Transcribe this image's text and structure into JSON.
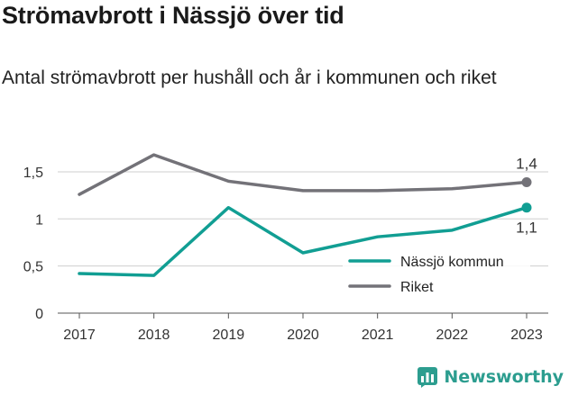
{
  "header": {
    "title": "Strömavbrott i Nässjö över tid",
    "subtitle": "Antal strömavbrott per hushåll och år i kommunen och riket"
  },
  "brand": {
    "name": "Newsworthy"
  },
  "colors": {
    "nassjo": "#119e93",
    "riket": "#737278",
    "axis": "#555555",
    "grid": "#cfcfcf",
    "brand": "#2c9d8f"
  },
  "chart_data": {
    "type": "line",
    "title": "Strömavbrott i Nässjö över tid",
    "subtitle": "Antal strömavbrott per hushåll och år i kommunen och riket",
    "xlabel": "",
    "ylabel": "",
    "x": [
      "2017",
      "2018",
      "2019",
      "2020",
      "2021",
      "2022",
      "2023"
    ],
    "ylim": [
      0,
      1.7
    ],
    "yticks": [
      0,
      0.5,
      1,
      1.5
    ],
    "ytick_labels": [
      "0",
      "0,5",
      "1",
      "1,5"
    ],
    "grid": true,
    "legend_position": "bottom-right",
    "series": [
      {
        "name": "Nässjö kommun",
        "color": "#119e93",
        "values": [
          0.42,
          0.4,
          1.12,
          0.64,
          0.81,
          0.88,
          1.12
        ],
        "end_label": "1,1"
      },
      {
        "name": "Riket",
        "color": "#737278",
        "values": [
          1.26,
          1.68,
          1.4,
          1.3,
          1.3,
          1.32,
          1.39
        ],
        "end_label": "1,4"
      }
    ]
  }
}
